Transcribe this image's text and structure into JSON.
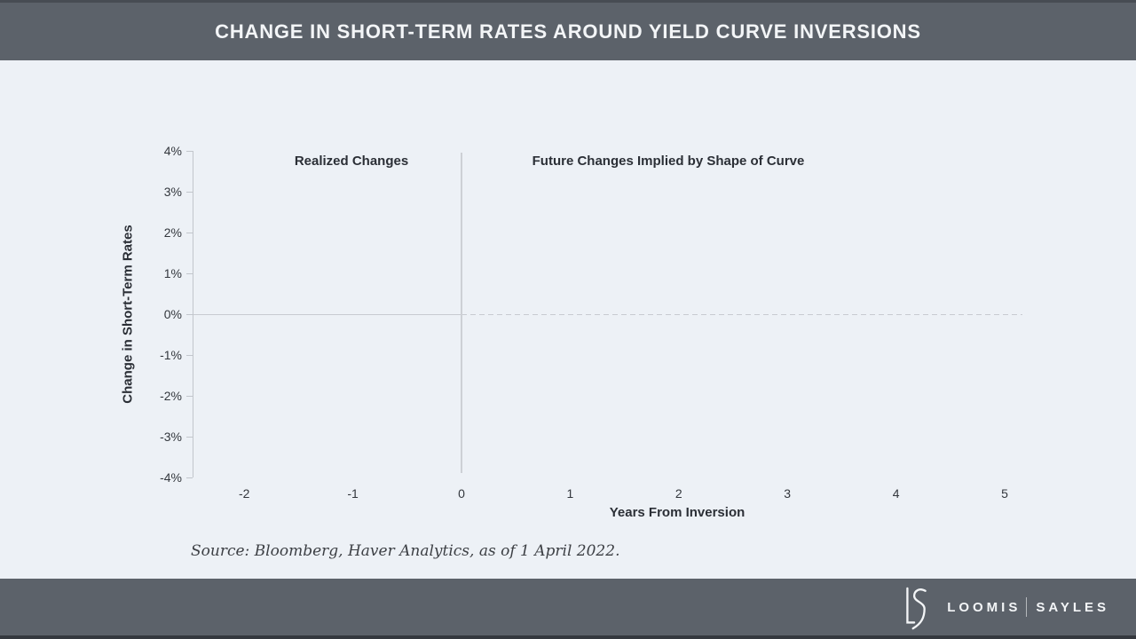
{
  "header": {
    "title": "CHANGE IN SHORT-TERM RATES AROUND YIELD CURVE INVERSIONS"
  },
  "chart": {
    "left_annotation": "Realized Changes",
    "right_annotation": "Future Changes Implied by Shape of Curve",
    "y_axis": {
      "title": "Change in Short-Term Rates",
      "ticks": [
        "4%",
        "3%",
        "2%",
        "1%",
        "0%",
        "-1%",
        "-2%",
        "-3%",
        "-4%"
      ]
    },
    "x_axis": {
      "title": "Years From Inversion",
      "ticks": [
        "-2",
        "-1",
        "0",
        "1",
        "2",
        "3",
        "4",
        "5"
      ]
    },
    "source": "Source: Bloomberg, Haver Analytics, as of 1 April 2022."
  },
  "footer": {
    "brand_left": "LOOMIS",
    "brand_right": "SAYLES",
    "logo": "ls-monogram"
  },
  "colors": {
    "bar_bg": "#5c626a",
    "canvas_bg": "#edf1f6",
    "grid": "#c8cbd1",
    "text_dark": "#2b2f36",
    "text_light": "#f3f5f7"
  },
  "chart_data": {
    "type": "line",
    "title": "CHANGE IN SHORT-TERM RATES AROUND YIELD CURVE INVERSIONS",
    "xlabel": "Years From Inversion",
    "ylabel": "Change in Short-Term Rates",
    "xlim": [
      -2.5,
      5.2
    ],
    "ylim_percent": [
      -4,
      4
    ],
    "x_ticks": [
      -2,
      -1,
      0,
      1,
      2,
      3,
      4,
      5
    ],
    "y_ticks_percent": [
      4,
      3,
      2,
      1,
      0,
      -1,
      -2,
      -3,
      -4
    ],
    "grid": "zero line only",
    "legend": "none",
    "annotations": [
      {
        "text": "Realized Changes",
        "region": "x < 0",
        "y_percent": 3.9
      },
      {
        "text": "Future Changes Implied by Shape of Curve",
        "region": "x > 0",
        "y_percent": 3.9
      }
    ],
    "reference_lines": [
      {
        "type": "horizontal",
        "y_percent": 0,
        "style_left_of_zero": "solid",
        "style_right_of_zero": "dashed"
      },
      {
        "type": "vertical",
        "x": 0,
        "style": "solid"
      }
    ],
    "series": [],
    "note": "No data series are rendered in this frame; only axes, annotations, the 0% reference line and the vertical line at x=0 are visible."
  }
}
